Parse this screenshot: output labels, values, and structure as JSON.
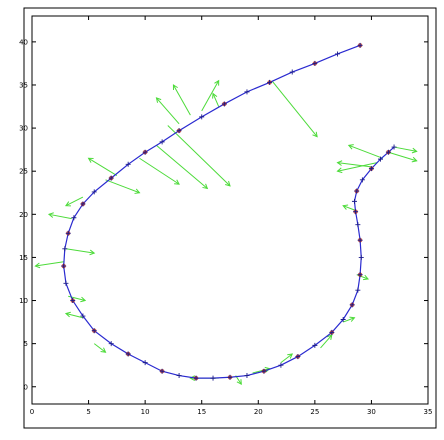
{
  "chart_data": {
    "type": "line",
    "title": "",
    "xlabel": "",
    "ylabel": "",
    "xlim": [
      0,
      35
    ],
    "ylim": [
      -2,
      43
    ],
    "xticks": [
      0,
      5,
      10,
      15,
      20,
      25,
      30,
      35
    ],
    "yticks": [
      0,
      5,
      10,
      15,
      20,
      25,
      30,
      35,
      40
    ],
    "grid": false,
    "legend": "none",
    "series": [
      {
        "style": "blue line with plus markers",
        "x": [
          29.0,
          27.0,
          25.0,
          23.0,
          21.0,
          19.0,
          17.0,
          15.0,
          13.0,
          11.5,
          10.0,
          8.5,
          7.0,
          5.5,
          4.5,
          3.7,
          3.2,
          2.9,
          2.8,
          3.0,
          3.6,
          4.5,
          5.5,
          7.0,
          8.5,
          10.0,
          11.5,
          13.0,
          14.5,
          16.0,
          17.5,
          19.0,
          20.5,
          22.0,
          23.5,
          25.0,
          26.5,
          27.5,
          28.3,
          28.8,
          29.0,
          29.1,
          29.0,
          28.8,
          28.6,
          28.5,
          28.7,
          29.2,
          30.0,
          30.8,
          31.5,
          32.0
        ],
        "y": [
          39.6,
          38.6,
          37.5,
          36.5,
          35.3,
          34.2,
          32.8,
          31.3,
          29.7,
          28.4,
          27.2,
          25.8,
          24.2,
          22.6,
          21.2,
          19.6,
          17.8,
          16.0,
          14.0,
          12.0,
          10.0,
          8.2,
          6.5,
          5.0,
          3.8,
          2.8,
          1.8,
          1.3,
          1.0,
          1.0,
          1.1,
          1.3,
          1.8,
          2.5,
          3.5,
          4.8,
          6.3,
          7.8,
          9.5,
          11.2,
          13.0,
          15.0,
          17.0,
          18.8,
          20.3,
          21.5,
          22.7,
          24.0,
          25.3,
          26.4,
          27.2,
          27.8
        ]
      }
    ],
    "arrows": [
      {
        "x": 21.2,
        "y": 35.5,
        "dx": 4.0,
        "dy": -6.5
      },
      {
        "x": 12.0,
        "y": 30.3,
        "dx": 5.5,
        "dy": -7.0
      },
      {
        "x": 11.0,
        "y": 28.0,
        "dx": 4.5,
        "dy": -5.0
      },
      {
        "x": 9.5,
        "y": 26.5,
        "dx": 3.5,
        "dy": -3.0
      },
      {
        "x": 13.0,
        "y": 30.5,
        "dx": -2.0,
        "dy": 3.0
      },
      {
        "x": 14.0,
        "y": 31.5,
        "dx": -1.5,
        "dy": 3.5
      },
      {
        "x": 15.0,
        "y": 32.0,
        "dx": 1.5,
        "dy": 3.5
      },
      {
        "x": 16.5,
        "y": 32.5,
        "dx": -0.5,
        "dy": 1.5
      },
      {
        "x": 7.5,
        "y": 24.5,
        "dx": -2.5,
        "dy": 2.0
      },
      {
        "x": 6.5,
        "y": 24.0,
        "dx": 3.0,
        "dy": -1.5
      },
      {
        "x": 4.5,
        "y": 22.0,
        "dx": -1.5,
        "dy": -1.0
      },
      {
        "x": 3.5,
        "y": 19.5,
        "dx": -2.0,
        "dy": 0.5
      },
      {
        "x": 3.0,
        "y": 16.0,
        "dx": 2.5,
        "dy": -0.5
      },
      {
        "x": 2.8,
        "y": 14.5,
        "dx": -2.5,
        "dy": -0.5
      },
      {
        "x": 3.2,
        "y": 10.5,
        "dx": 1.5,
        "dy": -0.5
      },
      {
        "x": 4.5,
        "y": 8.0,
        "dx": -1.5,
        "dy": 0.5
      },
      {
        "x": 5.5,
        "y": 5.0,
        "dx": 1.0,
        "dy": -1.0
      },
      {
        "x": 16.5,
        "y": 1.0,
        "dx": -2.5,
        "dy": 0.0
      },
      {
        "x": 18.0,
        "y": 1.3,
        "dx": 0.5,
        "dy": -1.0
      },
      {
        "x": 19.5,
        "y": 1.6,
        "dx": 1.5,
        "dy": 0.5
      },
      {
        "x": 22.0,
        "y": 2.8,
        "dx": 1.0,
        "dy": 1.0
      },
      {
        "x": 25.5,
        "y": 4.5,
        "dx": 1.0,
        "dy": 1.5
      },
      {
        "x": 27.5,
        "y": 7.5,
        "dx": 1.0,
        "dy": 0.5
      },
      {
        "x": 28.7,
        "y": 13.0,
        "dx": 1.0,
        "dy": -0.5
      },
      {
        "x": 28.5,
        "y": 20.5,
        "dx": -1.0,
        "dy": 0.5
      },
      {
        "x": 30.0,
        "y": 25.5,
        "dx": -3.0,
        "dy": 0.5
      },
      {
        "x": 30.5,
        "y": 26.0,
        "dx": -3.5,
        "dy": -1.0
      },
      {
        "x": 31.0,
        "y": 26.5,
        "dx": -3.0,
        "dy": 1.5
      },
      {
        "x": 31.5,
        "y": 27.2,
        "dx": 2.5,
        "dy": -1.0
      },
      {
        "x": 32.0,
        "y": 27.8,
        "dx": 2.0,
        "dy": -0.5
      }
    ],
    "colors": {
      "line": "#2a2ad0",
      "markers": "#1a1a8a",
      "arrows": "#4ddb3a",
      "highlights": "#b02010",
      "axes": "#000000"
    }
  }
}
